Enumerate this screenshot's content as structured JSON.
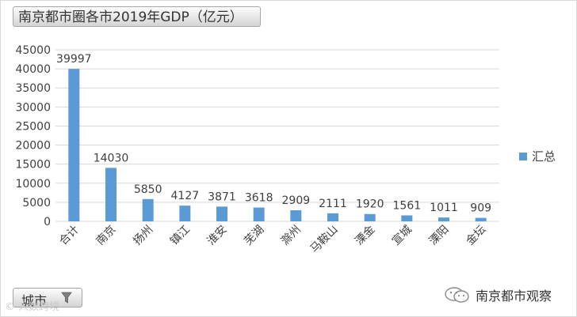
{
  "title": "南京都市圈各市2019年GDP（亿元）",
  "filter": {
    "label": "城市",
    "icon": "filter-funnel-icon"
  },
  "watermark_left": "© 人数跨境",
  "watermark_right": {
    "text": "南京都市观察",
    "icon": "wechat-icon"
  },
  "colors": {
    "bar": "#5b9bd5",
    "grid": "#d9d9d9"
  },
  "chart_data": {
    "type": "bar",
    "categories": [
      "合计",
      "南京",
      "扬州",
      "镇江",
      "淮安",
      "芜湖",
      "滁州",
      "马鞍山",
      "溧金",
      "宣城",
      "溧阳",
      "金坛"
    ],
    "series": [
      {
        "name": "汇总",
        "values": [
          39997,
          14030,
          5850,
          4127,
          3871,
          3618,
          2909,
          2111,
          1920,
          1561,
          1011,
          909
        ]
      }
    ],
    "ylim": [
      0,
      45000
    ],
    "yticks": [
      0,
      5000,
      10000,
      15000,
      20000,
      25000,
      30000,
      35000,
      40000,
      45000
    ],
    "grid": true,
    "legend_position": "right",
    "data_labels": true
  }
}
